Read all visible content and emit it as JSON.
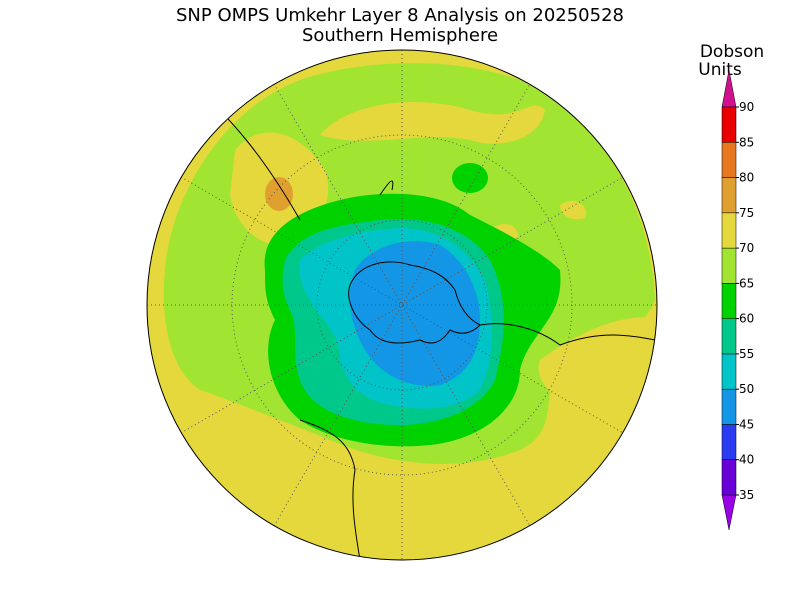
{
  "header": {
    "title": "SNP OMPS Umkehr Layer 8 Analysis on 20250528",
    "subtitle": "Southern Hemisphere"
  },
  "colorbar": {
    "label": [
      "Dobson",
      "Units"
    ],
    "ticks": [
      35,
      40,
      45,
      50,
      55,
      60,
      65,
      70,
      75,
      80,
      85,
      90
    ],
    "colors": [
      "#9a00e6",
      "#6a00d8",
      "#2a3cf0",
      "#1496e6",
      "#00c4c8",
      "#00c88a",
      "#00d200",
      "#a2e432",
      "#e4d83c",
      "#e0a030",
      "#e87820",
      "#e80000",
      "#d0108c"
    ]
  }
}
